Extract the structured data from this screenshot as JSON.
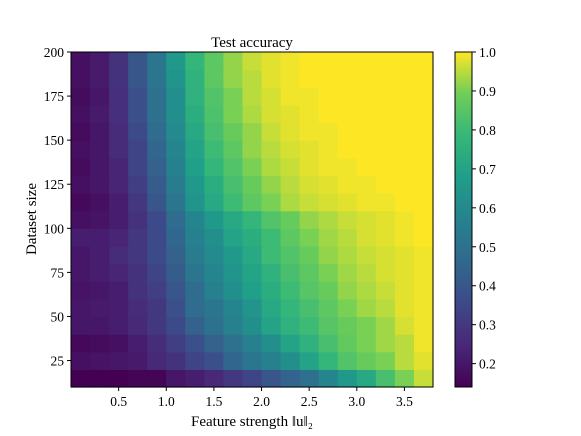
{
  "chart_data": {
    "type": "heatmap",
    "title": "Test accuracy",
    "xlabel": "Feature strength ‖u‖₂",
    "ylabel": "Dataset size",
    "x_ticks": [
      0.5,
      1.0,
      1.5,
      2.0,
      2.5,
      3.0,
      3.5
    ],
    "x_tick_labels": [
      "0.5",
      "1.0",
      "1.5",
      "2.0",
      "2.5",
      "3.0",
      "3.5"
    ],
    "y_ticks": [
      25,
      50,
      75,
      100,
      125,
      150,
      175,
      200
    ],
    "y_tick_labels": [
      "25",
      "50",
      "75",
      "100",
      "125",
      "150",
      "175",
      "200"
    ],
    "xlim": [
      0.0,
      3.8
    ],
    "ylim": [
      10,
      200
    ],
    "colorbar": {
      "colormap": "viridis",
      "range": [
        0.14,
        1.0
      ],
      "ticks": [
        0.2,
        0.3,
        0.4,
        0.5,
        0.6,
        0.7,
        0.8,
        0.9,
        1.0
      ],
      "tick_labels": [
        "0.2",
        "0.3",
        "0.4",
        "0.5",
        "0.6",
        "0.7",
        "0.8",
        "0.9",
        "1.0"
      ]
    },
    "x_centers": [
      0.1,
      0.3,
      0.5,
      0.7,
      0.9,
      1.1,
      1.3,
      1.5,
      1.7,
      1.9,
      2.1,
      2.3,
      2.5,
      2.7,
      2.9,
      3.1,
      3.3,
      3.5,
      3.7
    ],
    "y_centers": [
      15,
      25,
      35,
      45,
      55,
      65,
      75,
      85,
      95,
      105,
      115,
      125,
      135,
      145,
      155,
      165,
      175,
      185,
      195
    ],
    "values": [
      [
        0.14,
        0.14,
        0.14,
        0.15,
        0.15,
        0.2,
        0.22,
        0.25,
        0.3,
        0.34,
        0.4,
        0.45,
        0.5,
        0.58,
        0.66,
        0.72,
        0.82,
        0.9,
        0.96
      ],
      [
        0.18,
        0.19,
        0.2,
        0.21,
        0.25,
        0.28,
        0.34,
        0.38,
        0.46,
        0.52,
        0.56,
        0.62,
        0.7,
        0.78,
        0.84,
        0.88,
        0.9,
        0.95,
        0.98
      ],
      [
        0.16,
        0.17,
        0.18,
        0.22,
        0.26,
        0.32,
        0.38,
        0.44,
        0.5,
        0.56,
        0.62,
        0.7,
        0.76,
        0.82,
        0.87,
        0.9,
        0.93,
        0.95,
        0.99
      ],
      [
        0.2,
        0.2,
        0.22,
        0.25,
        0.3,
        0.36,
        0.44,
        0.5,
        0.56,
        0.62,
        0.7,
        0.76,
        0.8,
        0.85,
        0.88,
        0.9,
        0.93,
        0.97,
        0.99
      ],
      [
        0.2,
        0.21,
        0.22,
        0.26,
        0.3,
        0.38,
        0.48,
        0.52,
        0.58,
        0.64,
        0.72,
        0.78,
        0.82,
        0.86,
        0.9,
        0.93,
        0.95,
        0.98,
        0.99
      ],
      [
        0.19,
        0.2,
        0.22,
        0.28,
        0.32,
        0.4,
        0.48,
        0.56,
        0.62,
        0.68,
        0.74,
        0.8,
        0.85,
        0.88,
        0.92,
        0.94,
        0.96,
        0.98,
        0.99
      ],
      [
        0.2,
        0.22,
        0.24,
        0.28,
        0.34,
        0.42,
        0.52,
        0.58,
        0.64,
        0.7,
        0.76,
        0.82,
        0.86,
        0.9,
        0.93,
        0.95,
        0.97,
        0.98,
        0.99
      ],
      [
        0.2,
        0.22,
        0.26,
        0.3,
        0.36,
        0.44,
        0.54,
        0.6,
        0.66,
        0.72,
        0.8,
        0.84,
        0.88,
        0.92,
        0.94,
        0.96,
        0.97,
        0.98,
        0.99
      ],
      [
        0.22,
        0.22,
        0.24,
        0.3,
        0.36,
        0.46,
        0.56,
        0.62,
        0.7,
        0.74,
        0.8,
        0.86,
        0.9,
        0.93,
        0.95,
        0.97,
        0.98,
        0.99,
        1.0
      ],
      [
        0.18,
        0.19,
        0.22,
        0.28,
        0.36,
        0.48,
        0.58,
        0.66,
        0.72,
        0.78,
        0.84,
        0.88,
        0.92,
        0.94,
        0.96,
        0.97,
        0.98,
        0.99,
        1.0
      ],
      [
        0.16,
        0.18,
        0.22,
        0.3,
        0.4,
        0.52,
        0.64,
        0.72,
        0.8,
        0.86,
        0.9,
        0.94,
        0.96,
        0.97,
        0.98,
        0.99,
        0.99,
        1.0,
        1.0
      ],
      [
        0.18,
        0.2,
        0.24,
        0.32,
        0.42,
        0.54,
        0.66,
        0.74,
        0.82,
        0.88,
        0.92,
        0.95,
        0.97,
        0.98,
        0.99,
        0.99,
        1.0,
        1.0,
        1.0
      ],
      [
        0.17,
        0.2,
        0.24,
        0.34,
        0.44,
        0.56,
        0.68,
        0.78,
        0.84,
        0.9,
        0.94,
        0.96,
        0.98,
        0.99,
        0.99,
        1.0,
        1.0,
        1.0,
        1.0
      ],
      [
        0.18,
        0.2,
        0.26,
        0.34,
        0.46,
        0.58,
        0.7,
        0.8,
        0.86,
        0.92,
        0.95,
        0.97,
        0.98,
        0.99,
        1.0,
        1.0,
        1.0,
        1.0,
        1.0
      ],
      [
        0.17,
        0.2,
        0.26,
        0.36,
        0.48,
        0.6,
        0.72,
        0.82,
        0.88,
        0.92,
        0.96,
        0.98,
        0.99,
        0.99,
        1.0,
        1.0,
        1.0,
        1.0,
        1.0
      ],
      [
        0.18,
        0.21,
        0.27,
        0.38,
        0.5,
        0.62,
        0.74,
        0.83,
        0.9,
        0.94,
        0.97,
        0.98,
        0.99,
        1.0,
        1.0,
        1.0,
        1.0,
        1.0,
        1.0
      ],
      [
        0.17,
        0.2,
        0.27,
        0.38,
        0.5,
        0.62,
        0.76,
        0.84,
        0.9,
        0.95,
        0.97,
        0.99,
        0.99,
        1.0,
        1.0,
        1.0,
        1.0,
        1.0,
        1.0
      ],
      [
        0.18,
        0.21,
        0.28,
        0.4,
        0.52,
        0.64,
        0.76,
        0.86,
        0.92,
        0.95,
        0.98,
        0.99,
        1.0,
        1.0,
        1.0,
        1.0,
        1.0,
        1.0,
        1.0
      ],
      [
        0.18,
        0.21,
        0.28,
        0.4,
        0.52,
        0.66,
        0.78,
        0.86,
        0.92,
        0.96,
        0.98,
        0.99,
        1.0,
        1.0,
        1.0,
        1.0,
        1.0,
        1.0,
        1.0
      ]
    ]
  }
}
